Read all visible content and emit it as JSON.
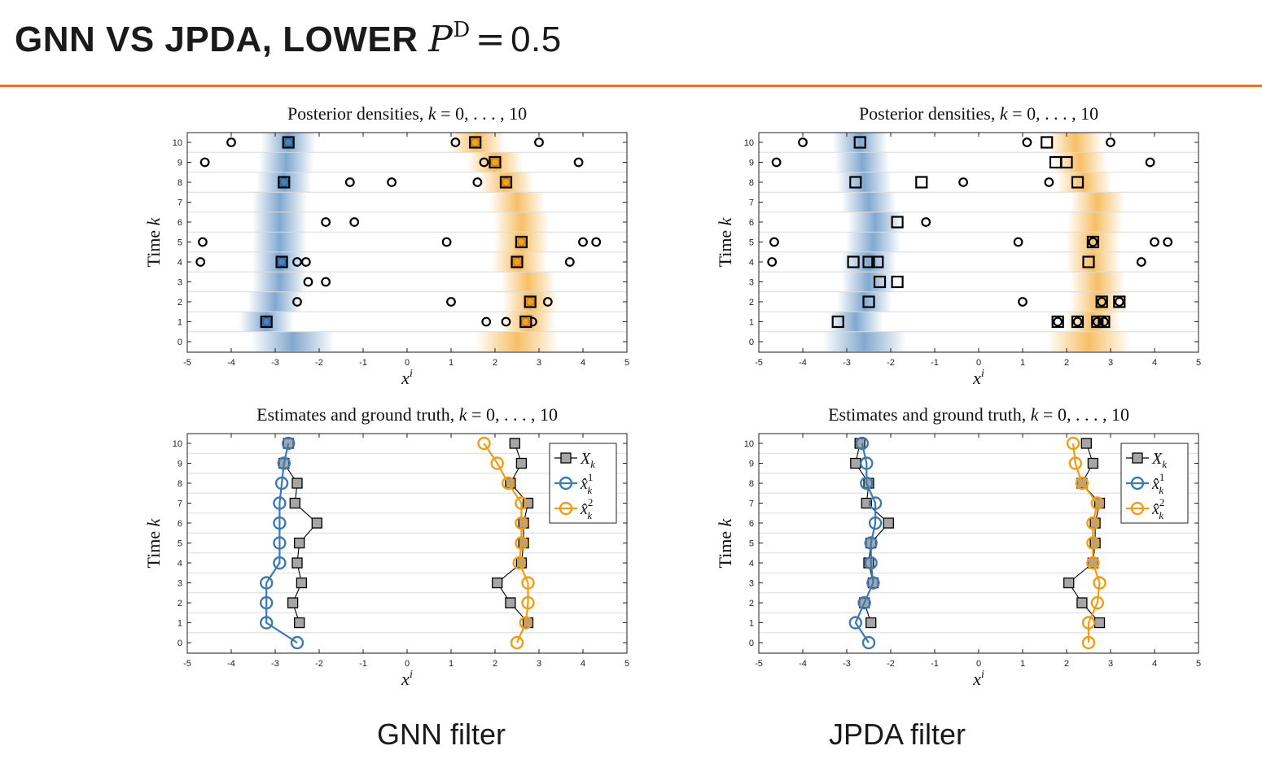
{
  "slide": {
    "title_prefix": "GNN VS JPDA, LOWER ",
    "title_symbol": "P",
    "title_sup": "D",
    "title_eq": "=",
    "title_value": "0.5",
    "accent_color": "#e8752a"
  },
  "captions": {
    "left": "GNN filter",
    "right": "JPDA filter"
  },
  "colors": {
    "target1": "#3d7ab5",
    "target2": "#f39c12",
    "truth": "#a6a6a6",
    "gridline": "#dcdcdc"
  },
  "chart_data": [
    {
      "panel": "gnn-posterior",
      "type": "scatter",
      "title": "Posterior densities, k = 0, . . . , 10",
      "xlabel": "x^i",
      "ylabel": "Time k",
      "xlim": [
        -5,
        5
      ],
      "ylim": [
        0,
        10
      ],
      "xticks": [
        "-5",
        "-4",
        "-3",
        "-2",
        "-1",
        "0",
        "1",
        "2",
        "3",
        "4",
        "5"
      ],
      "yticks": [
        "0",
        "1",
        "2",
        "3",
        "4",
        "5",
        "6",
        "7",
        "8",
        "9",
        "10"
      ],
      "density_centers_1": [
        -2.6,
        -3.2,
        -3.0,
        -2.9,
        -2.9,
        -2.9,
        -2.9,
        -2.9,
        -2.8,
        -2.75,
        -2.7
      ],
      "density_centers_2": [
        2.5,
        2.75,
        2.8,
        2.75,
        2.55,
        2.6,
        2.6,
        2.5,
        2.25,
        2.0,
        1.6
      ],
      "measurements": [
        {
          "k": 1,
          "x": [
            -3.2,
            1.8,
            2.25,
            2.7,
            2.85
          ]
        },
        {
          "k": 2,
          "x": [
            -2.5,
            1.0,
            2.8,
            3.2
          ]
        },
        {
          "k": 3,
          "x": [
            -2.25,
            -1.85
          ]
        },
        {
          "k": 4,
          "x": [
            -4.7,
            -2.85,
            -2.5,
            -2.3,
            2.5,
            3.7
          ]
        },
        {
          "k": 5,
          "x": [
            -4.65,
            0.9,
            2.6,
            4.0,
            4.3
          ]
        },
        {
          "k": 6,
          "x": [
            -1.85,
            -1.2
          ]
        },
        {
          "k": 8,
          "x": [
            -2.8,
            -1.3,
            -0.35,
            1.6,
            2.25
          ]
        },
        {
          "k": 9,
          "x": [
            -4.6,
            1.75,
            2.0,
            3.9
          ]
        },
        {
          "k": 10,
          "x": [
            -4.0,
            -2.7,
            1.1,
            1.55,
            3.0
          ]
        }
      ],
      "associated_1": [
        {
          "k": 1,
          "x": -3.2
        },
        {
          "k": 4,
          "x": -2.85
        },
        {
          "k": 8,
          "x": -2.8
        },
        {
          "k": 10,
          "x": -2.7
        }
      ],
      "associated_2": [
        {
          "k": 1,
          "x": 2.7
        },
        {
          "k": 2,
          "x": 2.8
        },
        {
          "k": 4,
          "x": 2.5
        },
        {
          "k": 5,
          "x": 2.6
        },
        {
          "k": 8,
          "x": 2.25
        },
        {
          "k": 9,
          "x": 2.0
        },
        {
          "k": 10,
          "x": 1.55
        }
      ],
      "unassociated_squares": []
    },
    {
      "panel": "jpda-posterior",
      "type": "scatter",
      "title": "Posterior densities, k = 0, . . . , 10",
      "xlabel": "x^i",
      "ylabel": "Time k",
      "xlim": [
        -5,
        5
      ],
      "ylim": [
        0,
        10
      ],
      "xticks": [
        "-5",
        "-4",
        "-3",
        "-2",
        "-1",
        "0",
        "1",
        "2",
        "3",
        "4",
        "5"
      ],
      "yticks": [
        "0",
        "1",
        "2",
        "3",
        "4",
        "5",
        "6",
        "7",
        "8",
        "9",
        "10"
      ],
      "density_centers_1": [
        -2.6,
        -2.8,
        -2.6,
        -2.5,
        -2.5,
        -2.4,
        -2.35,
        -2.5,
        -2.6,
        -2.65,
        -2.7
      ],
      "density_centers_2": [
        2.5,
        2.6,
        2.7,
        2.7,
        2.6,
        2.6,
        2.65,
        2.7,
        2.4,
        2.3,
        2.2
      ],
      "measurements": [
        {
          "k": 1,
          "x": [
            1.8,
            2.25,
            2.7,
            2.85
          ]
        },
        {
          "k": 2,
          "x": [
            1.0,
            2.8,
            3.2
          ]
        },
        {
          "k": 4,
          "x": [
            -4.7,
            3.7
          ]
        },
        {
          "k": 5,
          "x": [
            -4.65,
            0.9,
            2.6,
            4.0,
            4.3
          ]
        },
        {
          "k": 6,
          "x": [
            -1.2
          ]
        },
        {
          "k": 8,
          "x": [
            -0.35,
            1.6
          ]
        },
        {
          "k": 9,
          "x": [
            -4.6,
            3.9
          ]
        },
        {
          "k": 10,
          "x": [
            -4.0,
            1.1,
            3.0
          ]
        }
      ],
      "associated_1": [],
      "associated_2": [],
      "unassociated_squares": [
        {
          "k": 1,
          "x": -3.2
        },
        {
          "k": 1,
          "x": 1.8
        },
        {
          "k": 1,
          "x": 2.25
        },
        {
          "k": 1,
          "x": 2.7
        },
        {
          "k": 1,
          "x": 2.85
        },
        {
          "k": 2,
          "x": -2.5
        },
        {
          "k": 2,
          "x": 2.8
        },
        {
          "k": 2,
          "x": 3.2
        },
        {
          "k": 3,
          "x": -2.25
        },
        {
          "k": 3,
          "x": -1.85
        },
        {
          "k": 4,
          "x": -2.85
        },
        {
          "k": 4,
          "x": -2.5
        },
        {
          "k": 4,
          "x": -2.3
        },
        {
          "k": 4,
          "x": 2.5
        },
        {
          "k": 5,
          "x": 2.6
        },
        {
          "k": 6,
          "x": -1.85
        },
        {
          "k": 8,
          "x": -2.8
        },
        {
          "k": 8,
          "x": -1.3
        },
        {
          "k": 8,
          "x": 2.25
        },
        {
          "k": 9,
          "x": 1.75
        },
        {
          "k": 9,
          "x": 2.0
        },
        {
          "k": 10,
          "x": -2.7
        },
        {
          "k": 10,
          "x": 1.55
        }
      ]
    },
    {
      "panel": "gnn-estimates",
      "type": "line",
      "title": "Estimates and ground truth, k = 0, . . . , 10",
      "xlabel": "x^i",
      "ylabel": "Time k",
      "xlim": [
        -5,
        5
      ],
      "ylim": [
        0,
        10
      ],
      "xticks": [
        "-5",
        "-4",
        "-3",
        "-2",
        "-1",
        "0",
        "1",
        "2",
        "3",
        "4",
        "5"
      ],
      "yticks": [
        "0",
        "1",
        "2",
        "3",
        "4",
        "5",
        "6",
        "7",
        "8",
        "9",
        "10"
      ],
      "legend": [
        "X_k",
        "x̂_k^1",
        "x̂_k^2"
      ],
      "legend_position": "top-right",
      "truth_1": {
        "k": [
          1,
          2,
          3,
          4,
          5,
          6,
          7,
          8,
          9,
          10
        ],
        "x": [
          -2.45,
          -2.6,
          -2.4,
          -2.5,
          -2.45,
          -2.05,
          -2.55,
          -2.5,
          -2.8,
          -2.7
        ]
      },
      "truth_2": {
        "k": [
          1,
          2,
          3,
          4,
          5,
          6,
          7,
          8,
          9,
          10
        ],
        "x": [
          2.75,
          2.35,
          2.05,
          2.6,
          2.65,
          2.65,
          2.75,
          2.35,
          2.6,
          2.45
        ]
      },
      "estimate_1": {
        "k": [
          0,
          1,
          2,
          3,
          4,
          5,
          6,
          7,
          8,
          9,
          10
        ],
        "x": [
          -2.5,
          -3.2,
          -3.2,
          -3.2,
          -2.9,
          -2.9,
          -2.9,
          -2.9,
          -2.85,
          -2.8,
          -2.7
        ]
      },
      "estimate_2": {
        "k": [
          0,
          1,
          2,
          3,
          4,
          5,
          6,
          7,
          8,
          9,
          10
        ],
        "x": [
          2.5,
          2.7,
          2.75,
          2.75,
          2.55,
          2.6,
          2.6,
          2.6,
          2.3,
          2.05,
          1.75
        ]
      }
    },
    {
      "panel": "jpda-estimates",
      "type": "line",
      "title": "Estimates and ground truth, k = 0, . . . , 10",
      "xlabel": "x^i",
      "ylabel": "Time k",
      "xlim": [
        -5,
        5
      ],
      "ylim": [
        0,
        10
      ],
      "xticks": [
        "-5",
        "-4",
        "-3",
        "-2",
        "-1",
        "0",
        "1",
        "2",
        "3",
        "4",
        "5"
      ],
      "yticks": [
        "0",
        "1",
        "2",
        "3",
        "4",
        "5",
        "6",
        "7",
        "8",
        "9",
        "10"
      ],
      "legend": [
        "X_k",
        "x̂_k^1",
        "x̂_k^2"
      ],
      "legend_position": "top-right",
      "truth_1": {
        "k": [
          1,
          2,
          3,
          4,
          5,
          6,
          7,
          8,
          9,
          10
        ],
        "x": [
          -2.45,
          -2.6,
          -2.4,
          -2.5,
          -2.45,
          -2.05,
          -2.55,
          -2.5,
          -2.8,
          -2.7
        ]
      },
      "truth_2": {
        "k": [
          1,
          2,
          3,
          4,
          5,
          6,
          7,
          8,
          9,
          10
        ],
        "x": [
          2.75,
          2.35,
          2.05,
          2.6,
          2.65,
          2.65,
          2.75,
          2.35,
          2.6,
          2.45
        ]
      },
      "estimate_1": {
        "k": [
          0,
          1,
          2,
          3,
          4,
          5,
          6,
          7,
          8,
          9,
          10
        ],
        "x": [
          -2.5,
          -2.8,
          -2.6,
          -2.4,
          -2.45,
          -2.45,
          -2.35,
          -2.35,
          -2.55,
          -2.55,
          -2.65
        ]
      },
      "estimate_2": {
        "k": [
          0,
          1,
          2,
          3,
          4,
          5,
          6,
          7,
          8,
          9,
          10
        ],
        "x": [
          2.5,
          2.5,
          2.7,
          2.75,
          2.6,
          2.6,
          2.6,
          2.7,
          2.35,
          2.2,
          2.15
        ]
      }
    }
  ]
}
